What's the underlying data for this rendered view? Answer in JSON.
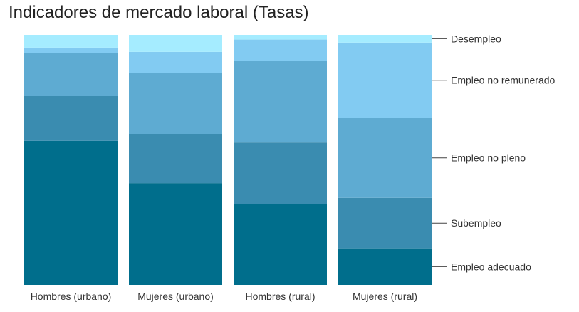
{
  "chart_data": {
    "type": "bar",
    "stacked": true,
    "normalized": true,
    "title": "Indicadores de mercado laboral (Tasas)",
    "categories": [
      "Hombres (urbano)",
      "Mujeres (urbano)",
      "Hombres (rural)",
      "Mujeres (rural)"
    ],
    "series": [
      {
        "name": "Empleo adecuado",
        "color": "#006e8c",
        "values": [
          57.6,
          40.7,
          32.8,
          14.7
        ]
      },
      {
        "name": "Subempleo",
        "color": "#3a8cb0",
        "values": [
          17.9,
          19.7,
          24.7,
          20.3
        ]
      },
      {
        "name": "Empleo no pleno",
        "color": "#5eabd2",
        "values": [
          17.3,
          24.3,
          33.0,
          32.1
        ]
      },
      {
        "name": "Empleo no remunerado",
        "color": "#82cbf2",
        "values": [
          2.1,
          8.5,
          8.6,
          30.3
        ]
      },
      {
        "name": "Desempleo",
        "color": "#a5ecff",
        "values": [
          5.1,
          6.8,
          1.9,
          3.1
        ]
      }
    ],
    "legend": "right",
    "grid": false,
    "ylim": [
      0,
      100
    ]
  }
}
